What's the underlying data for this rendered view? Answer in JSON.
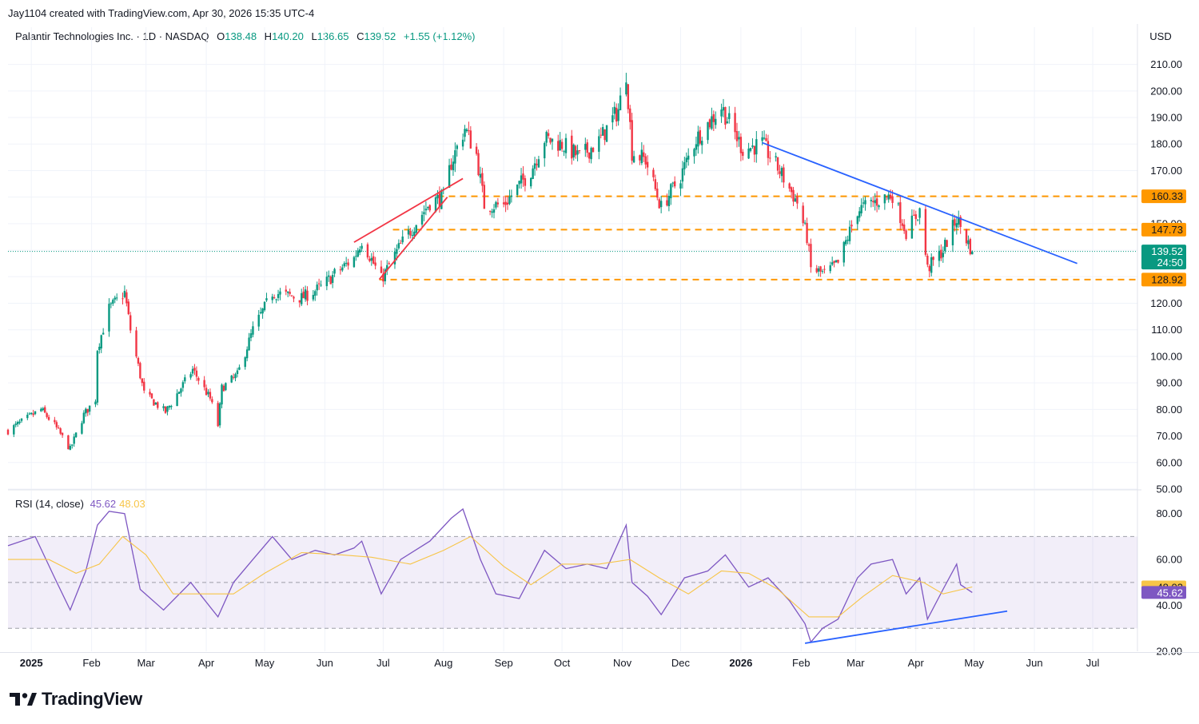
{
  "attribution": "Jay1104 created with TradingView.com, Apr 30, 2026 15:35 UTC-4",
  "legend": {
    "symbol": "Palantir Technologies Inc. · 1D · NASDAQ",
    "open_label": "O",
    "open": "138.48",
    "high_label": "H",
    "high": "140.20",
    "low_label": "L",
    "low": "136.65",
    "close_label": "C",
    "close": "139.52",
    "change": "+1.55 (+1.12%)"
  },
  "currency": "USD",
  "rsi_legend": {
    "label": "RSI (14, close)",
    "rsi": "45.62",
    "ma": "48.03"
  },
  "brand": "TradingView",
  "colors": {
    "up": "#089981",
    "down": "#f23645",
    "rsi": "#7e57c2",
    "rsi_ma": "#f7c548",
    "level": "#ff9800",
    "trend": "#2962ff",
    "wedge": "#f23645"
  },
  "chart_data": [
    {
      "type": "candlestick",
      "title": "Palantir Technologies Inc. · 1D · NASDAQ",
      "ylim": [
        50,
        215
      ],
      "y_ticks": [
        "210.00",
        "200.00",
        "190.00",
        "180.00",
        "170.00",
        "160.00",
        "150.00",
        "140.00",
        "130.00",
        "120.00",
        "110.00",
        "100.00",
        "90.00",
        "80.00",
        "70.00",
        "60.00",
        "50.00"
      ],
      "x_ticks": [
        "2025",
        "Feb",
        "Mar",
        "Apr",
        "May",
        "Jun",
        "Jul",
        "Aug",
        "Sep",
        "Oct",
        "Nov",
        "Dec",
        "2026",
        "Feb",
        "Mar",
        "Apr",
        "May",
        "Jun",
        "Jul"
      ],
      "x_tick_dates": [
        "2025-01-01",
        "2025-02-01",
        "2025-03-01",
        "2025-04-01",
        "2025-05-01",
        "2025-06-01",
        "2025-07-01",
        "2025-08-01",
        "2025-09-01",
        "2025-10-01",
        "2025-11-01",
        "2025-12-01",
        "2026-01-01",
        "2026-02-01",
        "2026-03-01",
        "2026-04-01",
        "2026-05-01",
        "2026-06-01",
        "2026-07-01"
      ],
      "bold_ticks": [
        "2025",
        "2026"
      ],
      "x_range": [
        "2024-12-20",
        "2026-07-24"
      ],
      "price_path": [
        [
          "2024-12-20",
          72
        ],
        [
          "2025-01-06",
          80
        ],
        [
          "2025-01-13",
          74
        ],
        [
          "2025-01-21",
          65
        ],
        [
          "2025-01-28",
          78
        ],
        [
          "2025-02-03",
          84
        ],
        [
          "2025-02-04",
          103
        ],
        [
          "2025-02-10",
          118
        ],
        [
          "2025-02-18",
          124
        ],
        [
          "2025-02-21",
          110
        ],
        [
          "2025-02-28",
          86
        ],
        [
          "2025-03-11",
          79
        ],
        [
          "2025-03-25",
          95
        ],
        [
          "2025-04-03",
          84
        ],
        [
          "2025-04-07",
          74
        ],
        [
          "2025-04-09",
          88
        ],
        [
          "2025-04-17",
          93
        ],
        [
          "2025-04-25",
          110
        ],
        [
          "2025-05-05",
          124
        ],
        [
          "2025-05-20",
          122
        ],
        [
          "2025-05-30",
          126
        ],
        [
          "2025-06-06",
          131
        ],
        [
          "2025-06-16",
          137
        ],
        [
          "2025-06-20",
          144
        ],
        [
          "2025-06-30",
          129
        ],
        [
          "2025-07-10",
          142
        ],
        [
          "2025-07-25",
          158
        ],
        [
          "2025-08-01",
          160
        ],
        [
          "2025-08-05",
          173
        ],
        [
          "2025-08-12",
          186
        ],
        [
          "2025-08-18",
          176
        ],
        [
          "2025-08-22",
          157
        ],
        [
          "2025-09-01",
          157
        ],
        [
          "2025-09-15",
          170
        ],
        [
          "2025-09-22",
          182
        ],
        [
          "2025-10-01",
          180
        ],
        [
          "2025-10-10",
          175
        ],
        [
          "2025-10-20",
          181
        ],
        [
          "2025-10-30",
          193
        ],
        [
          "2025-11-03",
          207
        ],
        [
          "2025-11-06",
          177
        ],
        [
          "2025-11-13",
          174
        ],
        [
          "2025-11-21",
          156
        ],
        [
          "2025-12-01",
          168
        ],
        [
          "2025-12-09",
          182
        ],
        [
          "2025-12-22",
          194
        ],
        [
          "2026-01-02",
          178
        ],
        [
          "2026-01-12",
          180
        ],
        [
          "2026-01-20",
          171
        ],
        [
          "2026-01-30",
          158
        ],
        [
          "2026-02-04",
          145
        ],
        [
          "2026-02-06",
          133
        ],
        [
          "2026-02-13",
          131
        ],
        [
          "2026-02-20",
          135
        ],
        [
          "2026-03-02",
          155
        ],
        [
          "2026-03-10",
          158
        ],
        [
          "2026-03-20",
          161
        ],
        [
          "2026-03-27",
          147
        ],
        [
          "2026-04-03",
          155
        ],
        [
          "2026-04-07",
          133
        ],
        [
          "2026-04-15",
          140
        ],
        [
          "2026-04-22",
          152
        ],
        [
          "2026-04-30",
          139.52
        ]
      ],
      "horizontal_levels": [
        {
          "value": 160.33,
          "label": "160.33",
          "from": "2025-07-29"
        },
        {
          "value": 147.73,
          "label": "147.73",
          "from": "2025-07-06"
        },
        {
          "value": 128.92,
          "label": "128.92",
          "from": "2025-06-29"
        }
      ],
      "last_price": {
        "value": 139.52,
        "label": "139.52",
        "countdown": "24:50"
      },
      "trendlines": [
        {
          "name": "rising wedge upper",
          "color": "#f23645",
          "points": [
            [
              "2025-06-16",
              143
            ],
            [
              "2025-08-11",
              167
            ]
          ]
        },
        {
          "name": "rising wedge lower",
          "color": "#f23645",
          "points": [
            [
              "2025-06-29",
              129
            ],
            [
              "2025-08-03",
              160
            ]
          ]
        },
        {
          "name": "descending resistance",
          "color": "#2962ff",
          "points": [
            [
              "2026-01-12",
              180.5
            ],
            [
              "2026-06-23",
              135
            ]
          ]
        }
      ]
    },
    {
      "type": "line",
      "title": "RSI (14, close)",
      "ylim": [
        20,
        90
      ],
      "y_ticks": [
        "80.00",
        "60.00",
        "40.00",
        "20.00"
      ],
      "bands": {
        "upper": 70,
        "middle": 50,
        "lower": 30
      },
      "series": [
        {
          "name": "RSI",
          "color": "#7e57c2",
          "last": 45.62,
          "points": [
            [
              "2024-12-20",
              66
            ],
            [
              "2025-01-03",
              70
            ],
            [
              "2025-01-13",
              52
            ],
            [
              "2025-01-21",
              38
            ],
            [
              "2025-01-29",
              55
            ],
            [
              "2025-02-04",
              75
            ],
            [
              "2025-02-10",
              81
            ],
            [
              "2025-02-18",
              80
            ],
            [
              "2025-02-26",
              47
            ],
            [
              "2025-03-10",
              38
            ],
            [
              "2025-03-24",
              50
            ],
            [
              "2025-04-07",
              35
            ],
            [
              "2025-04-15",
              50
            ],
            [
              "2025-04-25",
              60
            ],
            [
              "2025-05-05",
              70
            ],
            [
              "2025-05-15",
              60
            ],
            [
              "2025-05-27",
              64
            ],
            [
              "2025-06-06",
              62
            ],
            [
              "2025-06-16",
              65
            ],
            [
              "2025-06-20",
              68
            ],
            [
              "2025-06-30",
              45
            ],
            [
              "2025-07-10",
              60
            ],
            [
              "2025-07-25",
              68
            ],
            [
              "2025-08-05",
              78
            ],
            [
              "2025-08-11",
              82
            ],
            [
              "2025-08-20",
              60
            ],
            [
              "2025-08-28",
              45
            ],
            [
              "2025-09-09",
              43
            ],
            [
              "2025-09-22",
              64
            ],
            [
              "2025-10-03",
              56
            ],
            [
              "2025-10-14",
              58
            ],
            [
              "2025-10-24",
              56
            ],
            [
              "2025-11-03",
              75
            ],
            [
              "2025-11-06",
              50
            ],
            [
              "2025-11-14",
              44
            ],
            [
              "2025-11-21",
              36
            ],
            [
              "2025-12-03",
              52
            ],
            [
              "2025-12-15",
              55
            ],
            [
              "2025-12-24",
              62
            ],
            [
              "2026-01-05",
              48
            ],
            [
              "2026-01-15",
              52
            ],
            [
              "2026-01-26",
              42
            ],
            [
              "2026-02-03",
              32
            ],
            [
              "2026-02-06",
              24
            ],
            [
              "2026-02-12",
              30
            ],
            [
              "2026-02-20",
              34
            ],
            [
              "2026-03-02",
              52
            ],
            [
              "2026-03-09",
              58
            ],
            [
              "2026-03-20",
              60
            ],
            [
              "2026-03-27",
              45
            ],
            [
              "2026-04-03",
              52
            ],
            [
              "2026-04-07",
              34
            ],
            [
              "2026-04-15",
              47
            ],
            [
              "2026-04-22",
              58
            ],
            [
              "2026-04-24",
              49
            ],
            [
              "2026-04-30",
              45.62
            ]
          ]
        },
        {
          "name": "RSI-based MA",
          "color": "#f7c548",
          "last": 48.03,
          "points": [
            [
              "2024-12-20",
              60
            ],
            [
              "2025-01-10",
              60
            ],
            [
              "2025-01-24",
              54
            ],
            [
              "2025-02-05",
              58
            ],
            [
              "2025-02-17",
              70
            ],
            [
              "2025-03-01",
              62
            ],
            [
              "2025-03-15",
              45
            ],
            [
              "2025-04-01",
              45
            ],
            [
              "2025-04-15",
              45
            ],
            [
              "2025-05-01",
              54
            ],
            [
              "2025-05-20",
              63
            ],
            [
              "2025-06-10",
              62
            ],
            [
              "2025-06-25",
              61
            ],
            [
              "2025-07-15",
              58
            ],
            [
              "2025-08-01",
              64
            ],
            [
              "2025-08-15",
              70
            ],
            [
              "2025-09-01",
              57
            ],
            [
              "2025-09-15",
              49
            ],
            [
              "2025-10-01",
              58
            ],
            [
              "2025-10-20",
              58
            ],
            [
              "2025-11-05",
              60
            ],
            [
              "2025-11-20",
              52
            ],
            [
              "2025-12-05",
              45
            ],
            [
              "2025-12-22",
              55
            ],
            [
              "2026-01-05",
              54
            ],
            [
              "2026-01-20",
              47
            ],
            [
              "2026-02-05",
              35
            ],
            [
              "2026-02-20",
              35
            ],
            [
              "2026-03-05",
              44
            ],
            [
              "2026-03-20",
              53
            ],
            [
              "2026-04-05",
              50
            ],
            [
              "2026-04-15",
              45
            ],
            [
              "2026-04-30",
              48.03
            ]
          ]
        }
      ],
      "trendlines": [
        {
          "name": "rising support",
          "color": "#2962ff",
          "points": [
            [
              "2026-02-03",
              23.5
            ],
            [
              "2026-05-18",
              37.5
            ]
          ]
        }
      ]
    }
  ]
}
